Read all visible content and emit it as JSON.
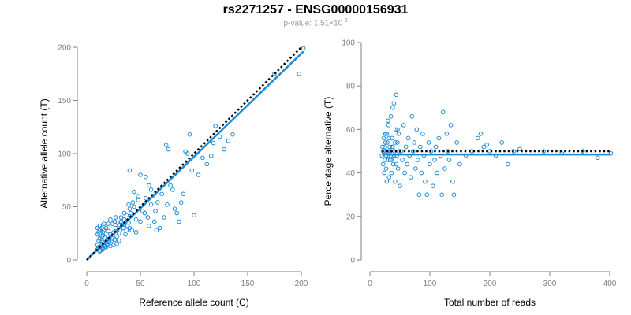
{
  "title": "rs2271257 - ENSG00000156931",
  "subtitle": {
    "prefix": "p-value: ",
    "mantissa": "1.51",
    "times": "×",
    "base": "10",
    "exponent": "-3"
  },
  "colors": {
    "points": "#1f8ad8",
    "fit_line": "#1f8ad8",
    "reference_line": "#000000",
    "axis": "#7f7f7f"
  },
  "chart_data": [
    {
      "type": "scatter",
      "title": "",
      "xlabel": "Reference allele count (C)",
      "ylabel": "Alternative allele count (T)",
      "xlim": [
        0,
        200
      ],
      "ylim": [
        0,
        200
      ],
      "xticks": [
        0,
        50,
        100,
        150,
        200
      ],
      "yticks": [
        0,
        50,
        100,
        150,
        200
      ],
      "grid": false,
      "fit_line": {
        "style": "solid",
        "x": [
          0,
          202
        ],
        "y": [
          0,
          196
        ]
      },
      "reference_line": {
        "style": "dotted",
        "x": [
          0,
          200
        ],
        "y": [
          0,
          200
        ]
      },
      "points": [
        [
          10,
          10
        ],
        [
          11,
          12
        ],
        [
          12,
          11
        ],
        [
          10,
          14
        ],
        [
          13,
          15
        ],
        [
          14,
          12
        ],
        [
          15,
          17
        ],
        [
          16,
          13
        ],
        [
          11,
          18
        ],
        [
          12,
          20
        ],
        [
          14,
          22
        ],
        [
          10,
          24
        ],
        [
          13,
          25
        ],
        [
          15,
          23
        ],
        [
          16,
          28
        ],
        [
          18,
          16
        ],
        [
          19,
          19
        ],
        [
          20,
          22
        ],
        [
          21,
          17
        ],
        [
          22,
          24
        ],
        [
          20,
          27
        ],
        [
          24,
          20
        ],
        [
          25,
          26
        ],
        [
          26,
          19
        ],
        [
          27,
          30
        ],
        [
          28,
          22
        ],
        [
          29,
          35
        ],
        [
          30,
          25
        ],
        [
          31,
          28
        ],
        [
          32,
          40
        ],
        [
          33,
          33
        ],
        [
          34,
          30
        ],
        [
          35,
          38
        ],
        [
          36,
          24
        ],
        [
          37,
          42
        ],
        [
          38,
          32
        ],
        [
          39,
          35
        ],
        [
          40,
          30
        ],
        [
          41,
          44
        ],
        [
          42,
          28
        ],
        [
          12,
          8
        ],
        [
          13,
          9
        ],
        [
          15,
          10
        ],
        [
          17,
          11
        ],
        [
          18,
          12
        ],
        [
          14,
          14
        ],
        [
          16,
          16
        ],
        [
          19,
          14
        ],
        [
          21,
          20
        ],
        [
          23,
          18
        ],
        [
          11,
          26
        ],
        [
          10,
          30
        ],
        [
          12,
          32
        ],
        [
          22,
          38
        ],
        [
          26,
          36
        ],
        [
          30,
          33
        ],
        [
          40,
          48
        ],
        [
          44,
          50
        ],
        [
          46,
          38
        ],
        [
          48,
          56
        ],
        [
          50,
          36
        ],
        [
          52,
          46
        ],
        [
          54,
          44
        ],
        [
          55,
          58
        ],
        [
          57,
          40
        ],
        [
          58,
          32
        ],
        [
          60,
          52
        ],
        [
          62,
          60
        ],
        [
          63,
          36
        ],
        [
          64,
          46
        ],
        [
          65,
          28
        ],
        [
          66,
          54
        ],
        [
          68,
          30
        ],
        [
          70,
          62
        ],
        [
          72,
          40
        ],
        [
          74,
          108
        ],
        [
          75,
          52
        ],
        [
          76,
          104
        ],
        [
          78,
          70
        ],
        [
          80,
          66
        ],
        [
          82,
          48
        ],
        [
          84,
          44
        ],
        [
          86,
          36
        ],
        [
          88,
          54
        ],
        [
          90,
          62
        ],
        [
          92,
          102
        ],
        [
          94,
          100
        ],
        [
          96,
          118
        ],
        [
          98,
          84
        ],
        [
          100,
          42
        ],
        [
          104,
          80
        ],
        [
          108,
          96
        ],
        [
          112,
          90
        ],
        [
          116,
          98
        ],
        [
          118,
          110
        ],
        [
          120,
          126
        ],
        [
          124,
          116
        ],
        [
          128,
          104
        ],
        [
          132,
          112
        ],
        [
          136,
          118
        ],
        [
          175,
          175
        ],
        [
          198,
          175
        ],
        [
          202,
          199
        ],
        [
          40,
          84
        ],
        [
          50,
          80
        ],
        [
          55,
          78
        ],
        [
          44,
          64
        ],
        [
          48,
          60
        ],
        [
          60,
          66
        ],
        [
          58,
          70
        ],
        [
          18,
          30
        ],
        [
          20,
          34
        ],
        [
          24,
          34
        ],
        [
          27,
          40
        ],
        [
          32,
          36
        ],
        [
          35,
          44
        ],
        [
          37,
          28
        ],
        [
          39,
          52
        ],
        [
          43,
          54
        ],
        [
          46,
          26
        ],
        [
          20,
          15
        ],
        [
          22,
          13
        ],
        [
          25,
          14
        ],
        [
          28,
          15
        ],
        [
          30,
          18
        ],
        [
          17,
          21
        ],
        [
          15,
          26
        ],
        [
          12,
          29
        ],
        [
          14,
          30
        ],
        [
          16,
          34
        ]
      ]
    },
    {
      "type": "scatter",
      "title": "",
      "xlabel": "Total number of reads",
      "ylabel": "Percentage alternative (T)",
      "xlim": [
        0,
        400
      ],
      "ylim": [
        0,
        100
      ],
      "xticks": [
        0,
        100,
        200,
        300,
        400
      ],
      "yticks": [
        0,
        20,
        40,
        60,
        80,
        100
      ],
      "grid": false,
      "fit_line": {
        "style": "solid",
        "x": [
          20,
          402
        ],
        "y": [
          48.5,
          48.5
        ]
      },
      "reference_line": {
        "style": "dotted",
        "x": [
          20,
          402
        ],
        "y": [
          50,
          50
        ]
      },
      "points": [
        [
          20,
          48
        ],
        [
          21,
          52
        ],
        [
          22,
          44
        ],
        [
          23,
          56
        ],
        [
          24,
          50
        ],
        [
          25,
          46
        ],
        [
          26,
          54
        ],
        [
          27,
          42
        ],
        [
          28,
          58
        ],
        [
          29,
          50
        ],
        [
          30,
          48
        ],
        [
          31,
          62
        ],
        [
          32,
          38
        ],
        [
          33,
          52
        ],
        [
          34,
          46
        ],
        [
          35,
          66
        ],
        [
          36,
          40
        ],
        [
          37,
          56
        ],
        [
          38,
          70
        ],
        [
          39,
          44
        ],
        [
          40,
          72
        ],
        [
          41,
          50
        ],
        [
          42,
          36
        ],
        [
          43,
          60
        ],
        [
          44,
          76
        ],
        [
          45,
          48
        ],
        [
          46,
          54
        ],
        [
          47,
          42
        ],
        [
          48,
          58
        ],
        [
          50,
          34
        ],
        [
          52,
          50
        ],
        [
          54,
          46
        ],
        [
          56,
          62
        ],
        [
          58,
          40
        ],
        [
          60,
          52
        ],
        [
          62,
          44
        ],
        [
          64,
          56
        ],
        [
          66,
          48
        ],
        [
          68,
          38
        ],
        [
          70,
          66
        ],
        [
          72,
          50
        ],
        [
          74,
          54
        ],
        [
          76,
          42
        ],
        [
          78,
          60
        ],
        [
          80,
          46
        ],
        [
          82,
          30
        ],
        [
          84,
          52
        ],
        [
          86,
          40
        ],
        [
          88,
          58
        ],
        [
          90,
          48
        ],
        [
          92,
          36
        ],
        [
          95,
          30
        ],
        [
          98,
          54
        ],
        [
          100,
          44
        ],
        [
          102,
          50
        ],
        [
          105,
          34
        ],
        [
          108,
          46
        ],
        [
          110,
          52
        ],
        [
          112,
          40
        ],
        [
          115,
          56
        ],
        [
          118,
          48
        ],
        [
          120,
          30
        ],
        [
          122,
          68
        ],
        [
          125,
          42
        ],
        [
          128,
          58
        ],
        [
          130,
          50
        ],
        [
          132,
          46
        ],
        [
          135,
          62
        ],
        [
          138,
          36
        ],
        [
          140,
          30
        ],
        [
          145,
          54
        ],
        [
          150,
          44
        ],
        [
          160,
          48
        ],
        [
          170,
          50
        ],
        [
          180,
          56
        ],
        [
          185,
          58
        ],
        [
          190,
          52
        ],
        [
          195,
          53
        ],
        [
          200,
          50
        ],
        [
          210,
          48
        ],
        [
          220,
          54
        ],
        [
          230,
          44
        ],
        [
          240,
          50
        ],
        [
          250,
          51
        ],
        [
          290,
          50
        ],
        [
          320,
          49
        ],
        [
          355,
          50
        ],
        [
          380,
          47
        ],
        [
          402,
          49
        ],
        [
          24,
          40
        ],
        [
          26,
          58
        ],
        [
          28,
          36
        ],
        [
          30,
          64
        ],
        [
          32,
          56
        ],
        [
          34,
          50
        ],
        [
          36,
          46
        ],
        [
          38,
          52
        ],
        [
          40,
          48
        ],
        [
          42,
          54
        ],
        [
          44,
          44
        ],
        [
          46,
          60
        ],
        [
          48,
          50
        ],
        [
          22,
          50
        ],
        [
          25,
          52
        ],
        [
          27,
          48
        ],
        [
          29,
          54
        ],
        [
          31,
          46
        ],
        [
          33,
          50
        ],
        [
          35,
          48
        ],
        [
          37,
          52
        ]
      ]
    }
  ]
}
